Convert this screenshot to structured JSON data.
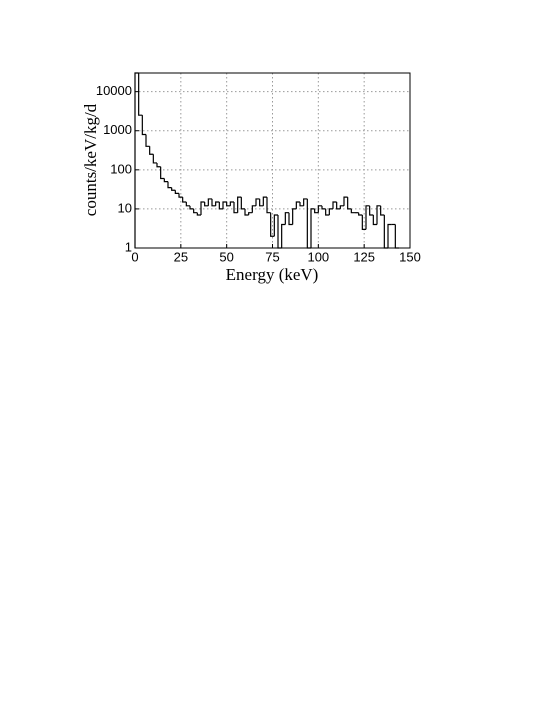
{
  "chart_data": {
    "type": "histogram",
    "xlabel": "Energy (keV)",
    "ylabel": "counts/keV/kg/d",
    "bins": [
      0,
      2,
      4,
      6,
      8,
      10,
      12,
      14,
      16,
      18,
      20,
      22,
      24,
      26,
      28,
      30,
      32,
      34,
      36,
      38,
      40,
      42,
      44,
      46,
      48,
      50,
      52,
      54,
      56,
      58,
      60,
      62,
      64,
      66,
      68,
      70,
      72,
      74,
      76,
      78,
      80,
      82,
      84,
      86,
      88,
      90,
      92,
      94,
      96,
      98,
      100,
      102,
      104,
      106,
      108,
      110,
      112,
      114,
      116,
      118,
      120,
      122,
      124,
      126,
      128,
      130,
      132,
      134,
      136,
      138,
      140,
      142,
      144
    ],
    "values": [
      30000,
      2500,
      800,
      400,
      250,
      150,
      120,
      60,
      50,
      35,
      30,
      25,
      20,
      15,
      12,
      10,
      8,
      7,
      15,
      12,
      18,
      12,
      15,
      10,
      15,
      12,
      15,
      8,
      20,
      10,
      7,
      8,
      12,
      18,
      12,
      20,
      8,
      2,
      7,
      1,
      4,
      8,
      4,
      10,
      15,
      12,
      18,
      1,
      10,
      8,
      12,
      10,
      7,
      10,
      15,
      10,
      12,
      20,
      10,
      8,
      8,
      7,
      3,
      12,
      7,
      4,
      12,
      7,
      1,
      4,
      4,
      1
    ],
    "color": "#000000",
    "xlim": [
      0,
      150
    ],
    "xticks": [
      0,
      25,
      50,
      75,
      100,
      125,
      150
    ],
    "ylim": [
      1,
      30000
    ],
    "yticks": [
      1,
      10,
      100,
      1000,
      10000
    ],
    "log_y": true,
    "grid": true
  }
}
